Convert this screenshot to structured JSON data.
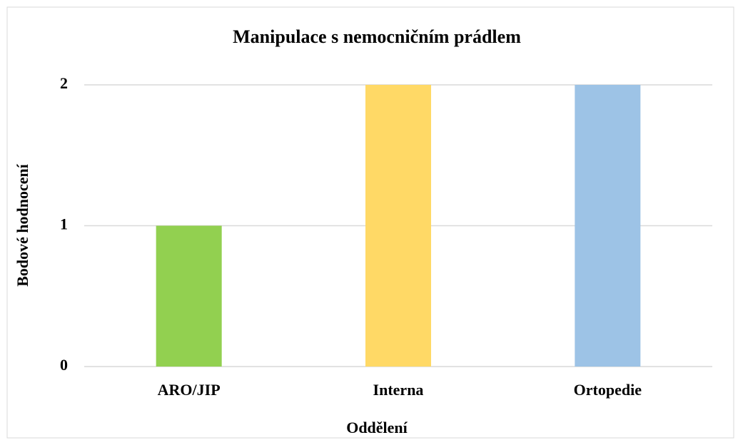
{
  "chart_data": {
    "type": "bar",
    "title": "Manipulace s nemocničním prádlem",
    "x_label": "Oddělení",
    "y_label": "Bodové hodnocení",
    "categories": [
      "ARO/JIP",
      "Interna",
      "Ortopedie"
    ],
    "values": [
      1,
      2,
      2
    ],
    "colors": [
      "#92d050",
      "#ffd966",
      "#9dc3e6"
    ],
    "ylim": [
      0,
      2
    ],
    "yticks": [
      0,
      1,
      2
    ],
    "grid": true
  }
}
